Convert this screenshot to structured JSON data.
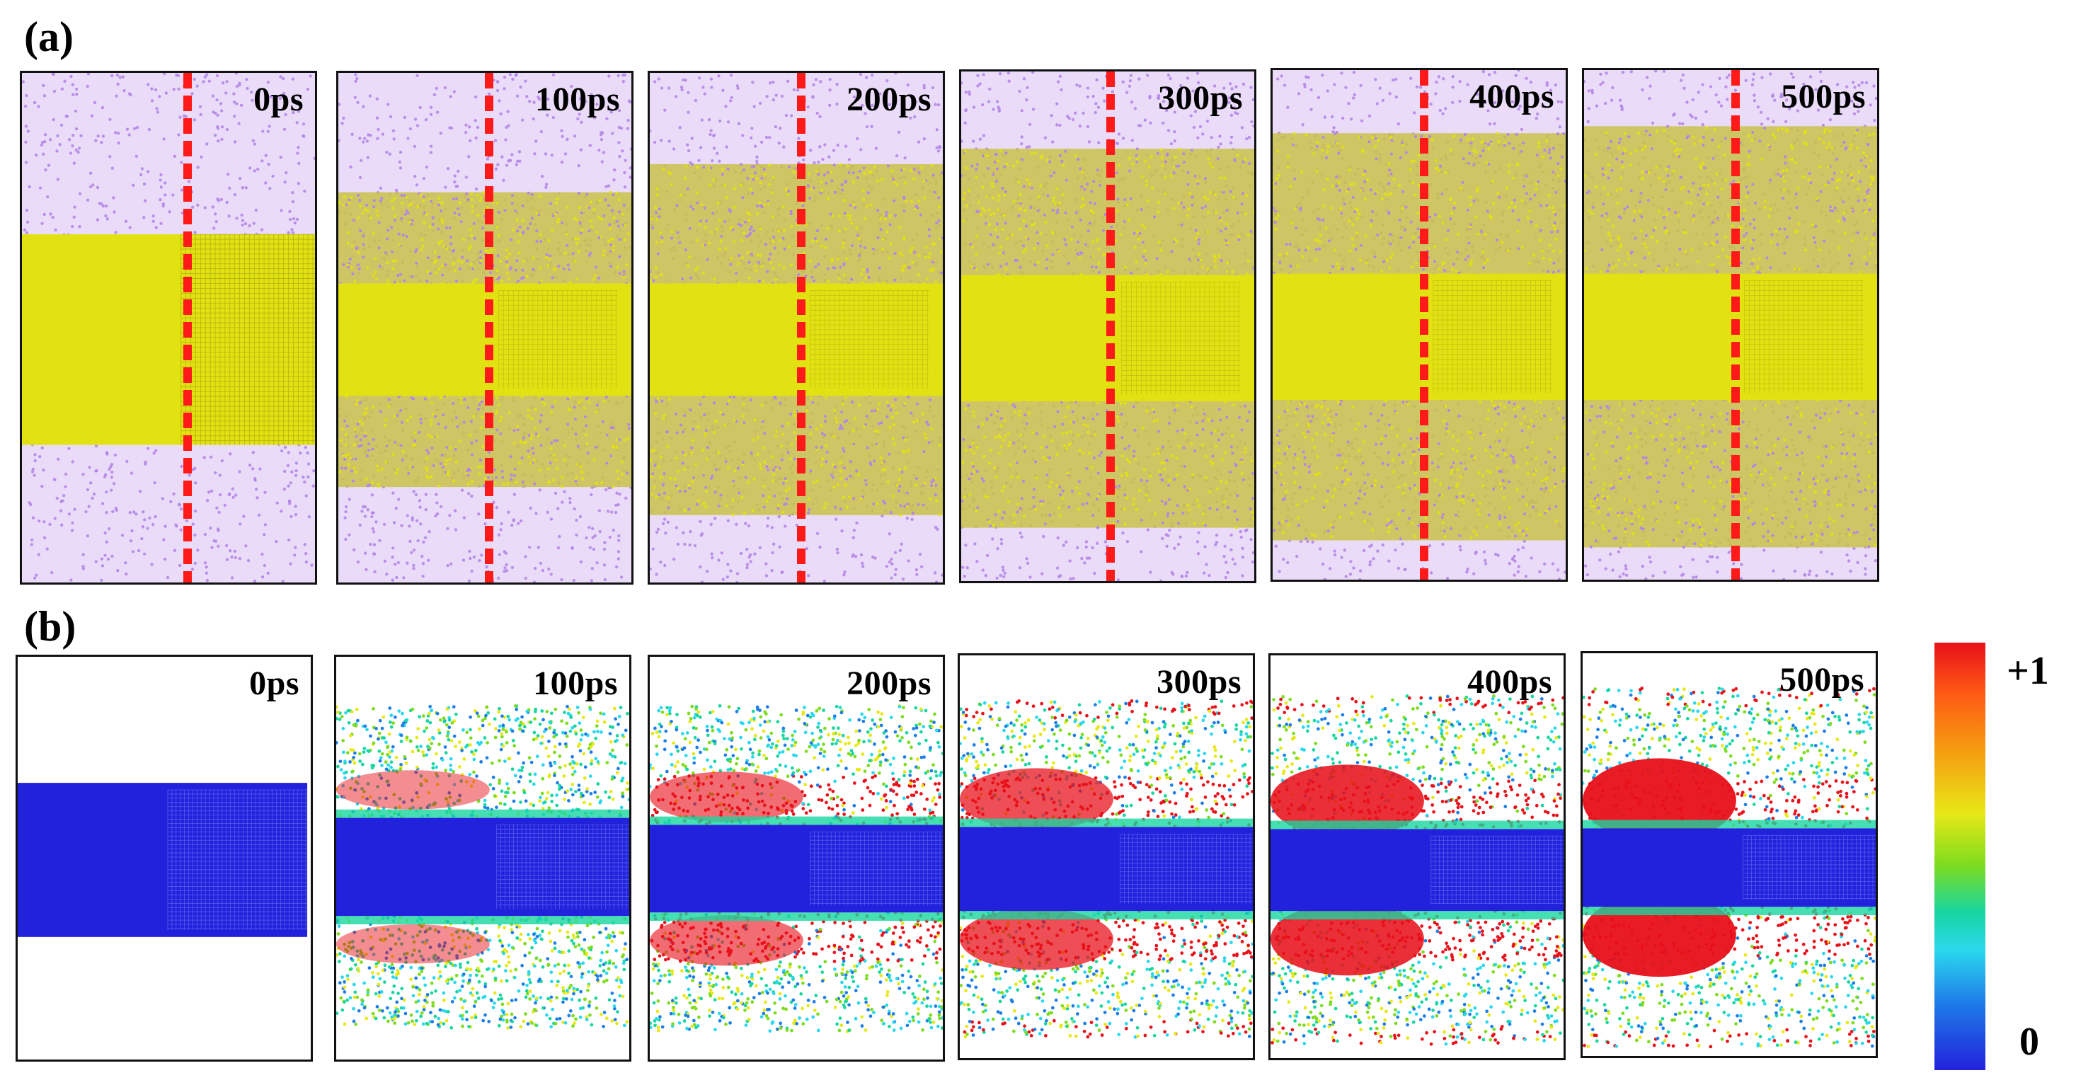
{
  "figure": {
    "panel_a_label": "(a)",
    "panel_b_label": "(b)",
    "frames_a": [
      {
        "time": "0ps"
      },
      {
        "time": "100ps"
      },
      {
        "time": "200ps"
      },
      {
        "time": "300ps"
      },
      {
        "time": "400ps"
      },
      {
        "time": "500ps"
      }
    ],
    "frames_b": [
      {
        "time": "0ps"
      },
      {
        "time": "100ps"
      },
      {
        "time": "200ps"
      },
      {
        "time": "300ps"
      },
      {
        "time": "400ps"
      },
      {
        "time": "500ps"
      }
    ],
    "colorbar": {
      "max_label": "+1",
      "min_label": "0",
      "colors": [
        "#e8101a",
        "#ff5a14",
        "#f5a010",
        "#e8e817",
        "#7edc1e",
        "#18d6a0",
        "#2ad8ee",
        "#1e7ee8",
        "#2222dd"
      ]
    },
    "colors": {
      "purple_phase": "#b486e6",
      "yellow_phase": "#e2e212",
      "divider": "#ff1a1a",
      "low_value": "#2222dd",
      "high_value": "#e8101a"
    }
  }
}
